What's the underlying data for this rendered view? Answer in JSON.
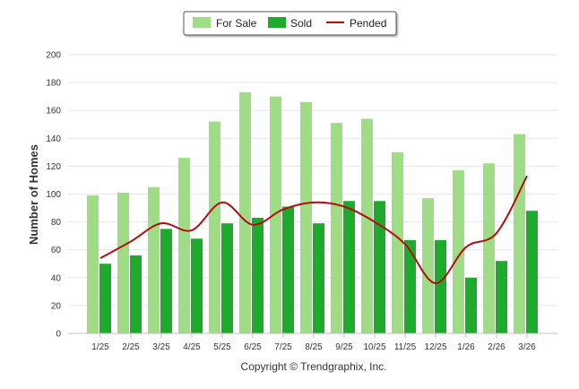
{
  "chart_data": {
    "type": "bar",
    "categories": [
      "1/25",
      "2/25",
      "3/25",
      "4/25",
      "5/25",
      "6/25",
      "7/25",
      "8/25",
      "9/25",
      "10/25",
      "11/25",
      "12/25",
      "1/26",
      "2/26",
      "3/26"
    ],
    "series": [
      {
        "name": "For Sale",
        "type": "bar",
        "color": "#9edd85",
        "values": [
          99,
          101,
          105,
          126,
          152,
          173,
          170,
          166,
          151,
          154,
          130,
          97,
          117,
          122,
          143
        ]
      },
      {
        "name": "Sold",
        "type": "bar",
        "color": "#1faa2e",
        "values": [
          50,
          56,
          75,
          68,
          79,
          83,
          91,
          79,
          95,
          95,
          67,
          67,
          40,
          52,
          88
        ]
      },
      {
        "name": "Pended",
        "type": "line",
        "color": "#b30e0e",
        "values": [
          54,
          66,
          79,
          74,
          94,
          78,
          89,
          94,
          91,
          80,
          64,
          36,
          62,
          72,
          113
        ]
      }
    ],
    "xlabel": "",
    "ylabel": "Number of Homes",
    "ylim": [
      0,
      200
    ],
    "yticks": [
      0,
      20,
      40,
      60,
      80,
      100,
      120,
      140,
      160,
      180,
      200
    ],
    "grid": true,
    "legend_position": "top-center",
    "credit": "Copyright © Trendgraphix, Inc."
  }
}
